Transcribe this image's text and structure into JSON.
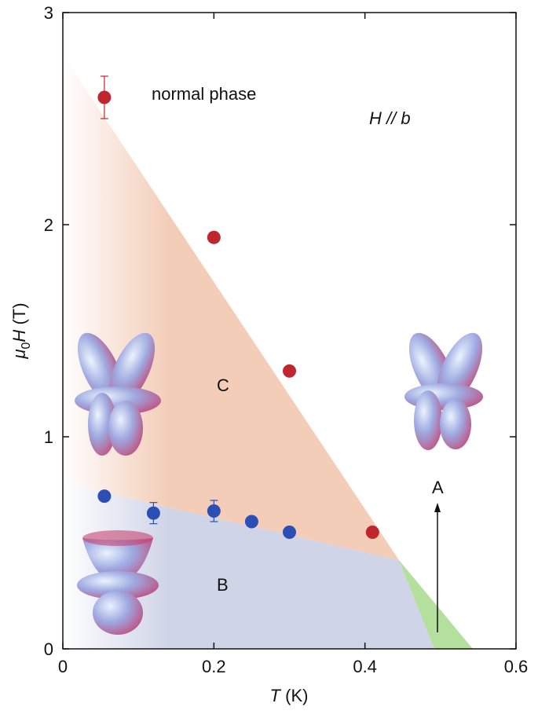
{
  "chart_data": {
    "type": "scatter",
    "xlabel": [
      "T",
      " (K)"
    ],
    "ylabel": [
      "μ",
      "0",
      "H",
      " (T)"
    ],
    "annotations": [
      "normal phase",
      "H // b",
      "C",
      "B",
      "A"
    ],
    "xlim": [
      0,
      0.6
    ],
    "xticks": [
      0,
      0.2,
      0.4,
      0.6
    ],
    "ylim": [
      0,
      3
    ],
    "yticks": [
      0,
      1,
      2,
      3
    ],
    "series": [
      {
        "color": "#c0262d",
        "x": [
          0.055,
          0.2,
          0.3,
          0.41
        ],
        "values": [
          2.6,
          1.94,
          1.31,
          0.55
        ],
        "errors": [
          0.1,
          null,
          null,
          null
        ]
      },
      {
        "color": "#2b4fb5",
        "x": [
          0.055,
          0.12,
          0.2,
          0.25,
          0.3
        ],
        "values": [
          0.72,
          0.64,
          0.65,
          0.6,
          0.55
        ],
        "errors": [
          null,
          0.05,
          0.05,
          null,
          null
        ]
      }
    ]
  }
}
